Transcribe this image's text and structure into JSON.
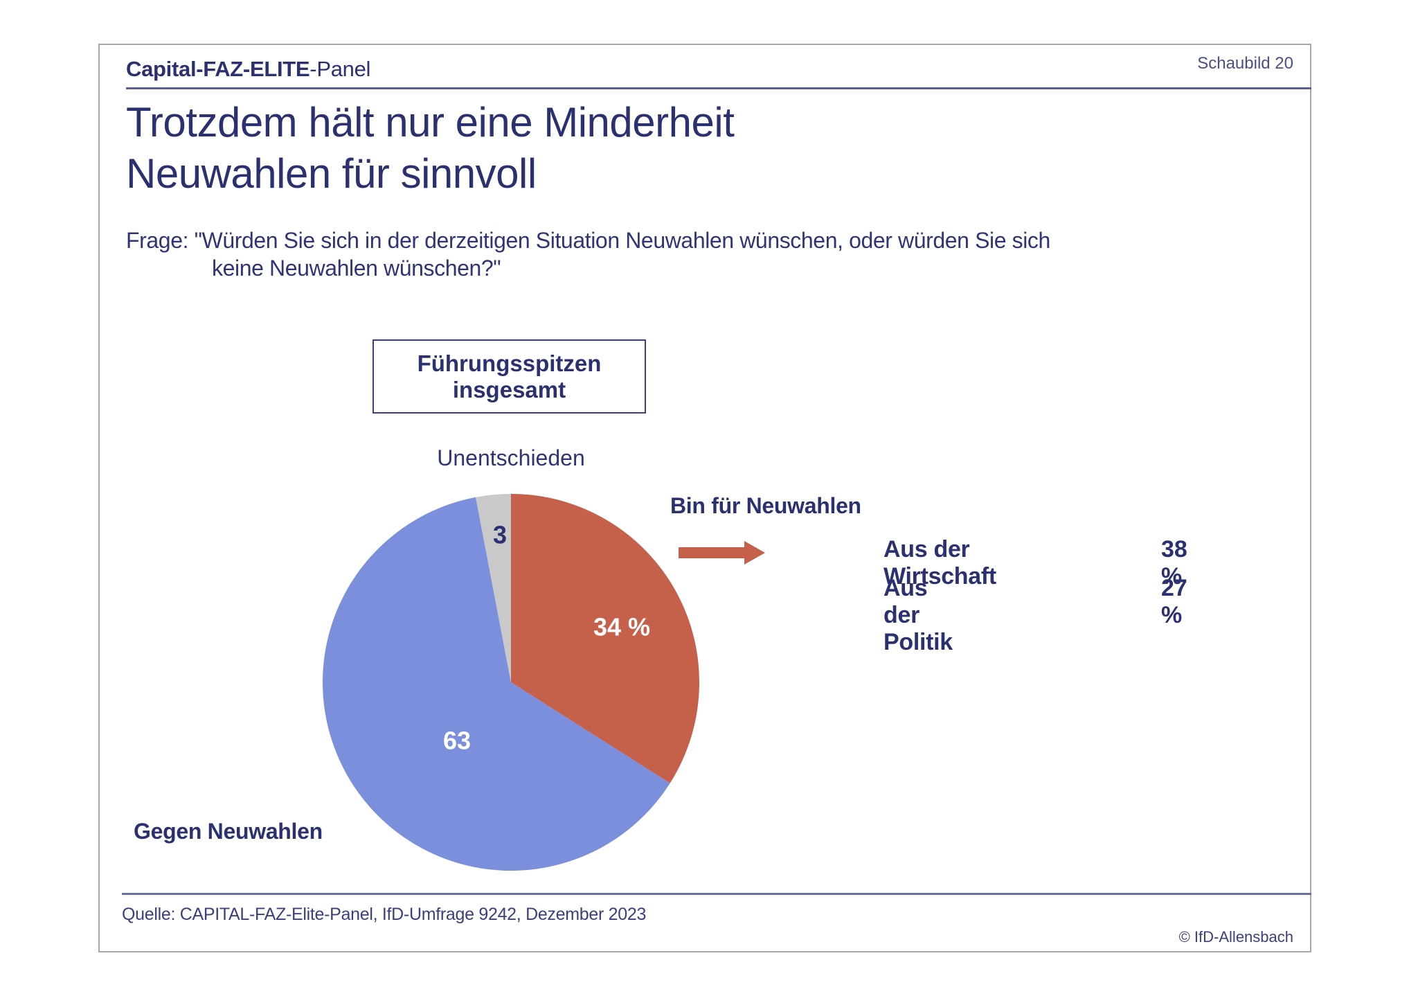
{
  "header": {
    "brand_part1": "Capital-",
    "brand_part2": "FAZ-ELITE",
    "brand_part3": "-Panel",
    "chart_number": "Schaubild 20"
  },
  "title": {
    "line1": "Trotzdem hält nur eine Minderheit",
    "line2": "Neuwahlen für sinnvoll"
  },
  "question": {
    "line1": "Frage: \"Würden Sie sich in der derzeitigen Situation Neuwahlen wünschen, oder würden Sie sich",
    "line2": "keine Neuwahlen wünschen?\""
  },
  "group": {
    "line1": "Führungsspitzen",
    "line2": "insgesamt"
  },
  "labels": {
    "undecided": "Unentschieden",
    "for": "Bin für Neuwahlen",
    "against": "Gegen Neuwahlen"
  },
  "breakdown": [
    {
      "label": "Aus der Wirtschaft",
      "value": "38 %"
    },
    {
      "label": "Aus der Politik",
      "value": "27 %"
    }
  ],
  "footer": {
    "source": "Quelle: CAPITAL-FAZ-Elite-Panel, IfD-Umfrage 9242, Dezember 2023",
    "copyright": "© IfD-Allensbach"
  },
  "colors": {
    "text": "#2b3170",
    "for": "#c5604a",
    "against": "#7c8fdd",
    "undecided": "#c9c9c9"
  },
  "chart_data": {
    "type": "pie",
    "title": "Führungsspitzen insgesamt",
    "categories": [
      "Bin für Neuwahlen",
      "Gegen Neuwahlen",
      "Unentschieden"
    ],
    "values": [
      34,
      63,
      3
    ],
    "data_labels": [
      "34 %",
      "63",
      "3"
    ],
    "unit": "%",
    "start_angle": "12 o'clock, clockwise",
    "annotations": [
      {
        "text": "Aus der Wirtschaft",
        "value": 38,
        "unit": "%"
      },
      {
        "text": "Aus der Politik",
        "value": 27,
        "unit": "%"
      }
    ]
  }
}
